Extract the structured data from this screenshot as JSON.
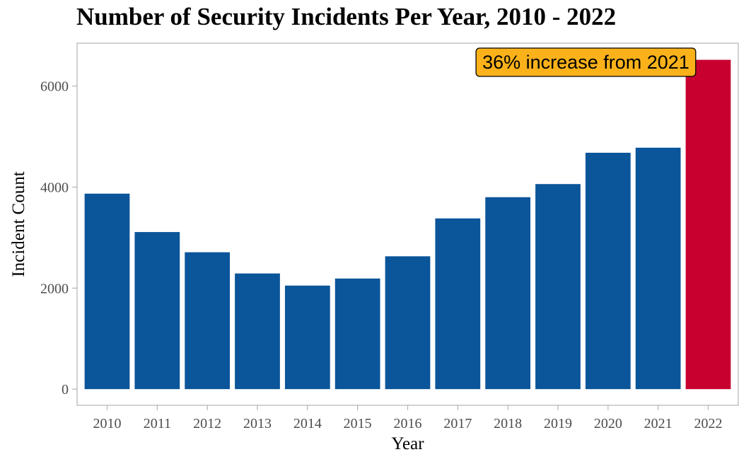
{
  "chart_data": {
    "type": "bar",
    "title": "Number of Security Incidents Per Year, 2010 - 2022",
    "xlabel": "Year",
    "ylabel": "Incident Count",
    "categories": [
      "2010",
      "2011",
      "2012",
      "2013",
      "2014",
      "2015",
      "2016",
      "2017",
      "2018",
      "2019",
      "2020",
      "2021",
      "2022"
    ],
    "values": [
      3870,
      3110,
      2710,
      2290,
      2050,
      2190,
      2630,
      3380,
      3800,
      4060,
      4680,
      4780,
      6520
    ],
    "ylim": [
      -320,
      6850
    ],
    "yticks": [
      0,
      2000,
      4000,
      6000
    ],
    "colors": {
      "default": "#0b559a",
      "highlight": "#c8002f",
      "annotation_fill": "#fbb21a"
    },
    "highlight_category": "2022",
    "annotation": {
      "text": "36% increase from 2021",
      "anchor_category": "2022"
    },
    "grid": false,
    "legend": "none"
  }
}
